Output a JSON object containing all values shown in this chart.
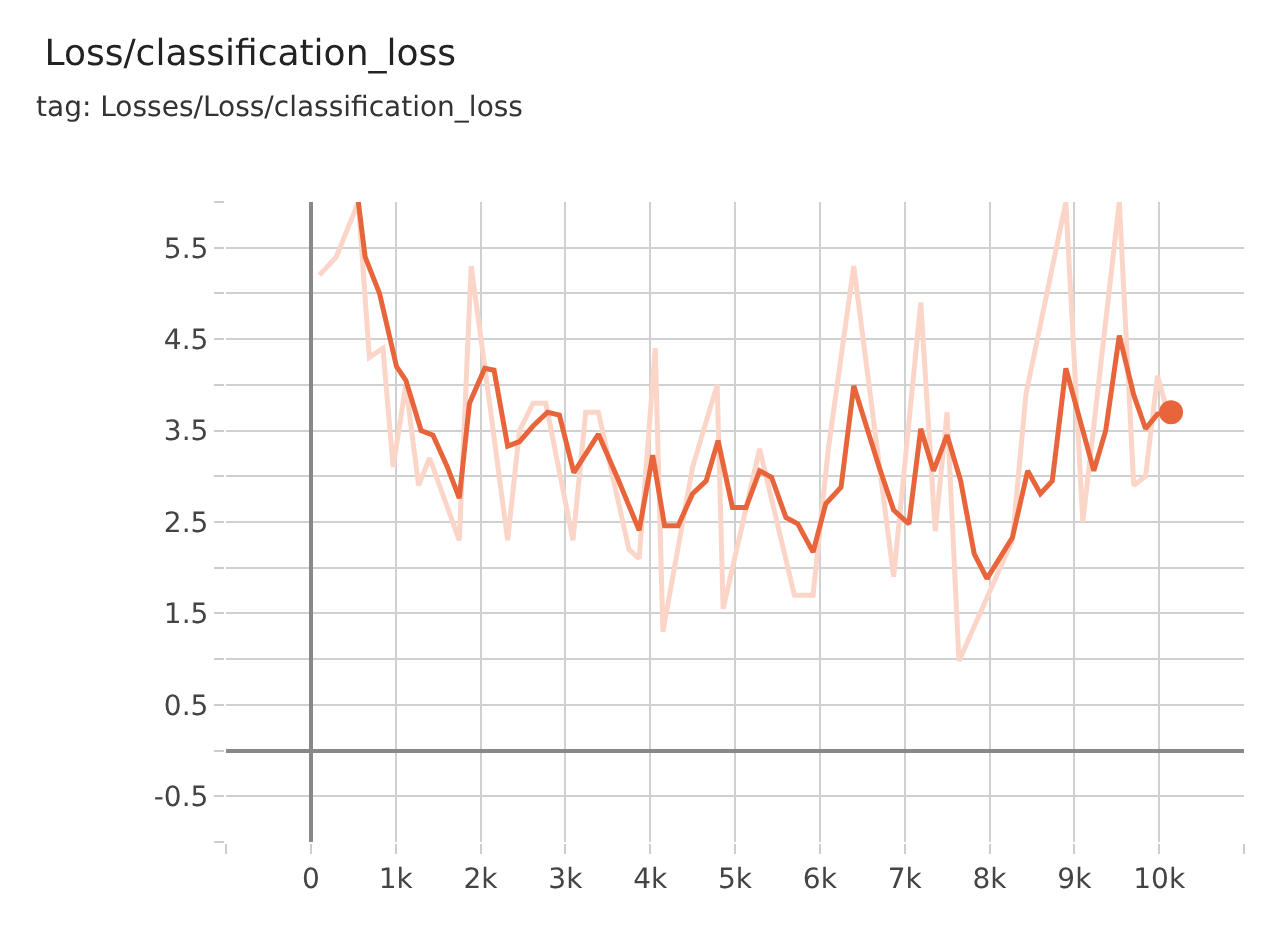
{
  "chart_data": {
    "type": "line",
    "title": "Loss/classification_loss",
    "subtitle": "tag: Losses/Loss/classification_loss",
    "xlim": [
      -1000,
      11000
    ],
    "xticks": [
      {
        "value": -1000,
        "label": null
      },
      0,
      {
        "value": 1000,
        "label": "1k"
      },
      {
        "value": 2000,
        "label": "2k"
      },
      {
        "value": 3000,
        "label": "3k"
      },
      {
        "value": 4000,
        "label": "4k"
      },
      {
        "value": 5000,
        "label": "5k"
      },
      {
        "value": 6000,
        "label": "6k"
      },
      {
        "value": 7000,
        "label": "7k"
      },
      {
        "value": 8000,
        "label": "8k"
      },
      {
        "value": 9000,
        "label": "9k"
      },
      {
        "value": 10000,
        "label": "10k"
      },
      {
        "value": 11000,
        "label": null
      }
    ],
    "ylim": [
      -1,
      6
    ],
    "yticks": [
      {
        "value": -1,
        "label": null
      },
      -0.5,
      {
        "value": 0,
        "label": null
      },
      0.5,
      {
        "value": 1,
        "label": null
      },
      1.5,
      {
        "value": 2,
        "label": null
      },
      2.5,
      {
        "value": 3,
        "label": null
      },
      3.5,
      {
        "value": 4,
        "label": null
      },
      4.5,
      {
        "value": 5,
        "label": null
      },
      5.5,
      {
        "value": 6,
        "label": null
      }
    ],
    "grid": true,
    "marker": "none",
    "line_style": "solid",
    "series": [
      {
        "color": "#fbd5c8",
        "x": [
          100,
          300,
          560,
          690,
          850,
          970,
          1120,
          1270,
          1400,
          1750,
          1890,
          2050,
          2320,
          2460,
          2620,
          2770,
          3090,
          3240,
          3390,
          3750,
          3870,
          4060,
          4150,
          4500,
          4790,
          4860,
          5290,
          5700,
          5920,
          6100,
          6400,
          6870,
          7190,
          7360,
          7500,
          7640,
          8270,
          8430,
          8900,
          9100,
          9530,
          9700,
          9840,
          9980,
          10100
        ],
        "values": [
          5.2,
          5.4,
          6.0,
          4.3,
          4.4,
          3.1,
          4.0,
          2.9,
          3.2,
          2.3,
          5.3,
          4.2,
          2.3,
          3.5,
          3.8,
          3.8,
          2.3,
          3.7,
          3.7,
          2.2,
          2.1,
          4.4,
          1.3,
          3.1,
          4.0,
          1.55,
          3.3,
          1.7,
          1.7,
          3.3,
          5.3,
          1.9,
          4.9,
          2.4,
          3.7,
          0.98,
          2.3,
          3.9,
          6.0,
          2.5,
          6.0,
          2.9,
          3.0,
          4.1,
          3.7
        ]
      },
      {
        "color": "#e8643a",
        "x": [
          560,
          640,
          810,
          1010,
          1120,
          1300,
          1440,
          1610,
          1750,
          1870,
          2050,
          2160,
          2320,
          2460,
          2620,
          2790,
          2930,
          3100,
          3390,
          3620,
          3870,
          4030,
          4170,
          4330,
          4500,
          4660,
          4800,
          4970,
          5130,
          5290,
          5430,
          5600,
          5740,
          5920,
          6070,
          6250,
          6400,
          6700,
          6870,
          7050,
          7190,
          7340,
          7500,
          7660,
          7820,
          7970,
          8270,
          8450,
          8600,
          8740,
          8900,
          9230,
          9370,
          9530,
          9700,
          9840,
          9980,
          10140
        ],
        "values": [
          6.0,
          5.4,
          5.0,
          4.2,
          4.05,
          3.5,
          3.45,
          3.1,
          2.76,
          3.8,
          4.18,
          4.16,
          3.33,
          3.38,
          3.55,
          3.7,
          3.67,
          3.04,
          3.46,
          2.97,
          2.41,
          3.23,
          2.46,
          2.46,
          2.81,
          2.95,
          3.39,
          2.66,
          2.66,
          3.06,
          2.99,
          2.55,
          2.48,
          2.17,
          2.7,
          2.88,
          3.99,
          3.1,
          2.63,
          2.48,
          3.52,
          3.06,
          3.45,
          2.95,
          2.15,
          1.88,
          2.33,
          3.06,
          2.81,
          2.95,
          4.18,
          3.06,
          3.5,
          4.54,
          3.89,
          3.52,
          3.68,
          3.7
        ]
      },
      {
        "type": "scatter",
        "marker": "circle",
        "color": "#e8643a",
        "x": [
          10140
        ],
        "values": [
          3.7
        ]
      }
    ]
  }
}
